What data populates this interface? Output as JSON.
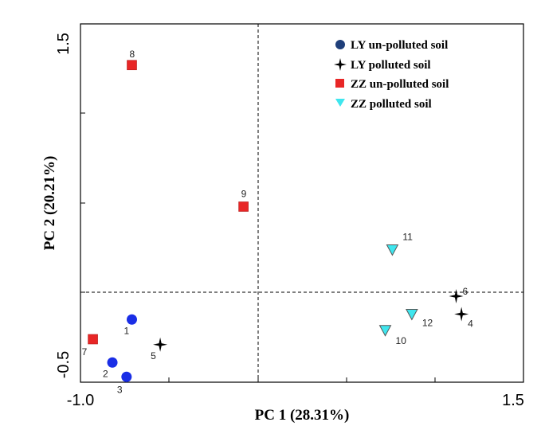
{
  "chart_data": {
    "type": "scatter",
    "xlabel": "PC 1 (28.31%)",
    "ylabel": "PC 2 (20.21%)",
    "xlim": [
      -1.0,
      1.5
    ],
    "ylim": [
      -0.5,
      1.5
    ],
    "x_tick_labels": [
      "-1.0",
      "1.5"
    ],
    "y_tick_labels": [
      "-0.5",
      "1.5"
    ],
    "origin_lines": "dashed",
    "grid": false,
    "legend_position": "top-right",
    "series": [
      {
        "name": "LY un-polluted soil",
        "marker": "circle",
        "color": "#1a2ee6",
        "legend_color": "#1f3f7a",
        "points": [
          {
            "label": "1",
            "x": -0.71,
            "y": -0.15
          },
          {
            "label": "2",
            "x": -0.82,
            "y": -0.39
          },
          {
            "label": "3",
            "x": -0.74,
            "y": -0.47
          }
        ]
      },
      {
        "name": "LY polluted soil",
        "marker": "star",
        "color": "#000000",
        "points": [
          {
            "label": "5",
            "x": -0.55,
            "y": -0.29
          },
          {
            "label": "6",
            "x": 1.12,
            "y": -0.02
          },
          {
            "label": "4",
            "x": 1.15,
            "y": -0.12
          }
        ]
      },
      {
        "name": "ZZ un-polluted soil",
        "marker": "square",
        "color": "#e82626",
        "points": [
          {
            "label": "8",
            "x": -0.71,
            "y": 1.27
          },
          {
            "label": "9",
            "x": -0.08,
            "y": 0.48
          },
          {
            "label": "7",
            "x": -0.93,
            "y": -0.26
          }
        ]
      },
      {
        "name": "ZZ polluted soil",
        "marker": "triangle-down",
        "color": "#3fe6ee",
        "points": [
          {
            "label": "11",
            "x": 0.76,
            "y": 0.24
          },
          {
            "label": "12",
            "x": 0.87,
            "y": -0.12
          },
          {
            "label": "10",
            "x": 0.72,
            "y": -0.21
          }
        ]
      }
    ]
  }
}
